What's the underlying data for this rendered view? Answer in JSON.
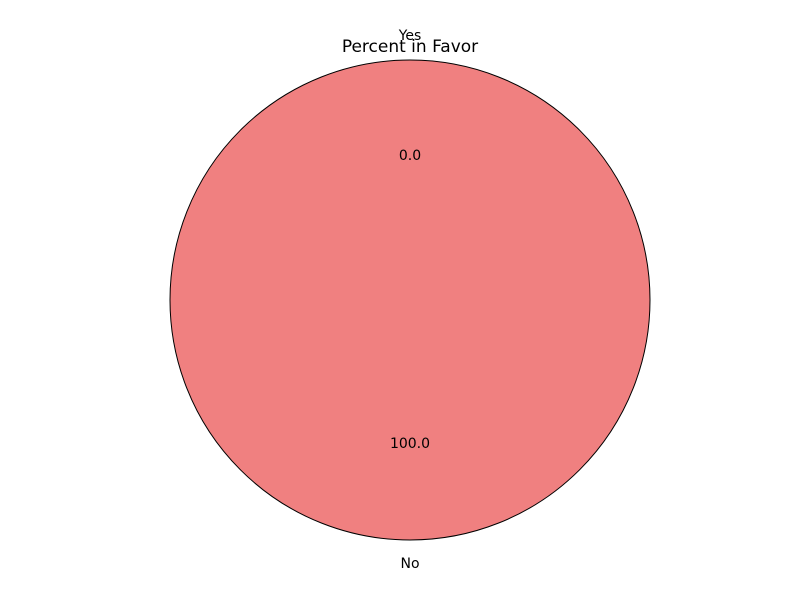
{
  "chart_data": {
    "type": "pie",
    "title": "Percent in Favor",
    "categories": [
      "Yes",
      "No"
    ],
    "values": [
      0.0,
      100.0
    ],
    "value_labels": [
      "0.0",
      "100.0"
    ],
    "colors": [
      "#f08080",
      "#f08080"
    ],
    "edge_color": "#000000",
    "legend": "none"
  }
}
